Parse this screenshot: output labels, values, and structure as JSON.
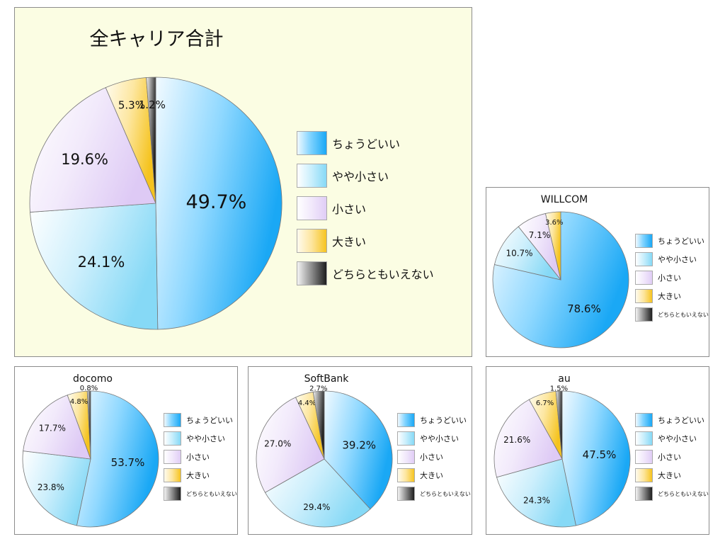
{
  "legend_labels": [
    "ちょうどいい",
    "やや小さい",
    "小さい",
    "大きい",
    "どちらともいえない"
  ],
  "colors": {
    "just_right": "#1aa8f5",
    "slightly_small": "#86d9f6",
    "small": "#e0cdf6",
    "large": "#f6c420",
    "undecided": "#1e1e1e",
    "total_panel_bg": "#fbfde3"
  },
  "chart_data": [
    {
      "id": "total",
      "type": "pie",
      "title": "全キャリア合計",
      "categories": [
        "ちょうどいい",
        "やや小さい",
        "小さい",
        "大きい",
        "どちらともいえない"
      ],
      "values": [
        49.7,
        24.1,
        19.6,
        5.3,
        1.2
      ],
      "labels": [
        "49.7%",
        "24.1%",
        "19.6%",
        "5.3%",
        "1.2%"
      ],
      "legend_position": "right"
    },
    {
      "id": "willcom",
      "type": "pie",
      "title": "WILLCOM",
      "categories": [
        "ちょうどいい",
        "やや小さい",
        "小さい",
        "大きい",
        "どちらともいえない"
      ],
      "values": [
        78.6,
        10.7,
        7.1,
        3.6,
        0
      ],
      "labels": [
        "78.6%",
        "10.7%",
        "7.1%",
        "3.6%",
        ""
      ],
      "legend_position": "right"
    },
    {
      "id": "docomo",
      "type": "pie",
      "title": "docomo",
      "categories": [
        "ちょうどいい",
        "やや小さい",
        "小さい",
        "大きい",
        "どちらともいえない"
      ],
      "values": [
        53.7,
        23.8,
        17.7,
        4.8,
        0.8
      ],
      "labels": [
        "53.7%",
        "23.8%",
        "17.7%",
        "4.8%",
        "0.8%"
      ],
      "legend_position": "right"
    },
    {
      "id": "softbank",
      "type": "pie",
      "title": "SoftBank",
      "categories": [
        "ちょうどいい",
        "やや小さい",
        "小さい",
        "大きい",
        "どちらともいえない"
      ],
      "values": [
        39.2,
        29.4,
        27.0,
        4.4,
        2.7
      ],
      "labels": [
        "39.2%",
        "29.4%",
        "27.0%",
        "4.4%",
        "2.7%"
      ],
      "legend_position": "right"
    },
    {
      "id": "au",
      "type": "pie",
      "title": "au",
      "categories": [
        "ちょうどいい",
        "やや小さい",
        "小さい",
        "大きい",
        "どちらともいえない"
      ],
      "values": [
        47.5,
        24.3,
        21.6,
        6.7,
        1.5
      ],
      "labels": [
        "47.5%",
        "24.3%",
        "21.6%",
        "6.7%",
        "1.5%"
      ],
      "legend_position": "right"
    }
  ]
}
